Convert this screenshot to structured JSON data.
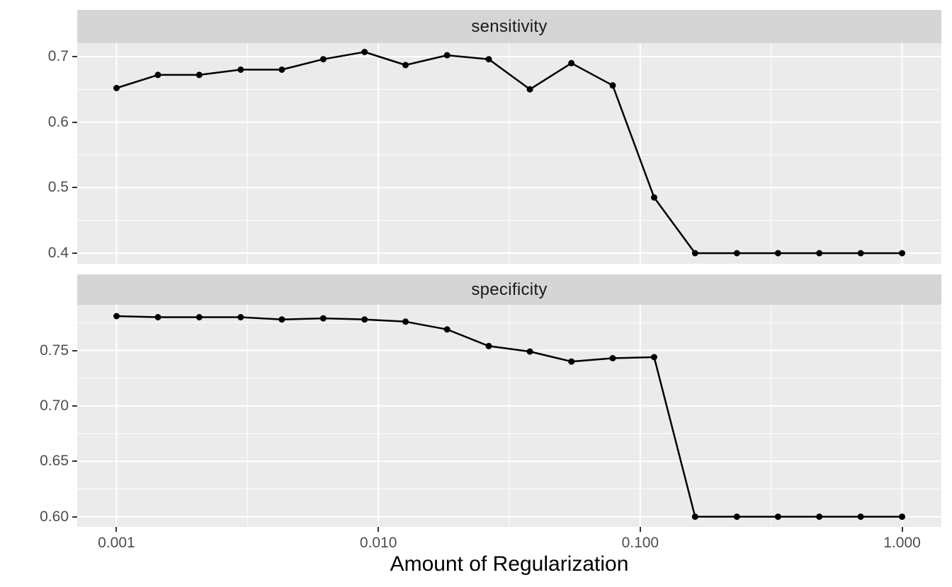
{
  "x_axis": {
    "title": "Amount of Regularization",
    "scale": "log10",
    "tick_labels": [
      "0.001",
      "0.010",
      "0.100",
      "1.000"
    ],
    "tick_values": [
      0.001,
      0.01,
      0.1,
      1
    ],
    "minor_breaks_log10": [
      -2.5,
      -1.5,
      -0.5
    ],
    "limits_log10": [
      -3.15,
      0.15
    ]
  },
  "style": {
    "panel_bg": "#ebebeb",
    "strip_bg": "#d5d5d5",
    "grid_color": "#ffffff",
    "line_color": "#000000",
    "point_color": "#000000",
    "axis_text_color": "#4d4d4d",
    "strip_text_color": "#1a1a1a",
    "tick_mark_color": "#333333"
  },
  "chart_data": [
    {
      "type": "line",
      "facet": "sensitivity",
      "x": [
        0.001,
        0.00144,
        0.00207,
        0.00298,
        0.00428,
        0.00616,
        0.00886,
        0.0127,
        0.0183,
        0.0264,
        0.0379,
        0.0546,
        0.0785,
        0.113,
        0.162,
        0.234,
        0.336,
        0.483,
        0.695,
        1.0
      ],
      "values": [
        0.652,
        0.672,
        0.672,
        0.68,
        0.68,
        0.696,
        0.707,
        0.687,
        0.702,
        0.696,
        0.65,
        0.69,
        0.656,
        0.485,
        0.4,
        0.4,
        0.4,
        0.4,
        0.4,
        0.4
      ],
      "y_tick_labels": [
        "0.7",
        "0.6",
        "0.5",
        "0.4"
      ],
      "y_tick_values": [
        0.7,
        0.6,
        0.5,
        0.4
      ],
      "y_minor": [
        0.45,
        0.55,
        0.65
      ],
      "ylim": [
        0.3838,
        0.7205
      ]
    },
    {
      "type": "line",
      "facet": "specificity",
      "x": [
        0.001,
        0.00144,
        0.00207,
        0.00298,
        0.00428,
        0.00616,
        0.00886,
        0.0127,
        0.0183,
        0.0264,
        0.0379,
        0.0546,
        0.0785,
        0.113,
        0.162,
        0.234,
        0.336,
        0.483,
        0.695,
        1.0
      ],
      "values": [
        0.781,
        0.78,
        0.78,
        0.78,
        0.778,
        0.779,
        0.778,
        0.776,
        0.769,
        0.754,
        0.749,
        0.74,
        0.743,
        0.744,
        0.6,
        0.6,
        0.6,
        0.6,
        0.6,
        0.6
      ],
      "y_tick_labels": [
        "0.75",
        "0.70",
        "0.65",
        "0.60"
      ],
      "y_tick_values": [
        0.75,
        0.7,
        0.65,
        0.6
      ],
      "y_minor": [
        0.625,
        0.675,
        0.725,
        0.775
      ],
      "ylim": [
        0.5908,
        0.7912
      ]
    }
  ]
}
